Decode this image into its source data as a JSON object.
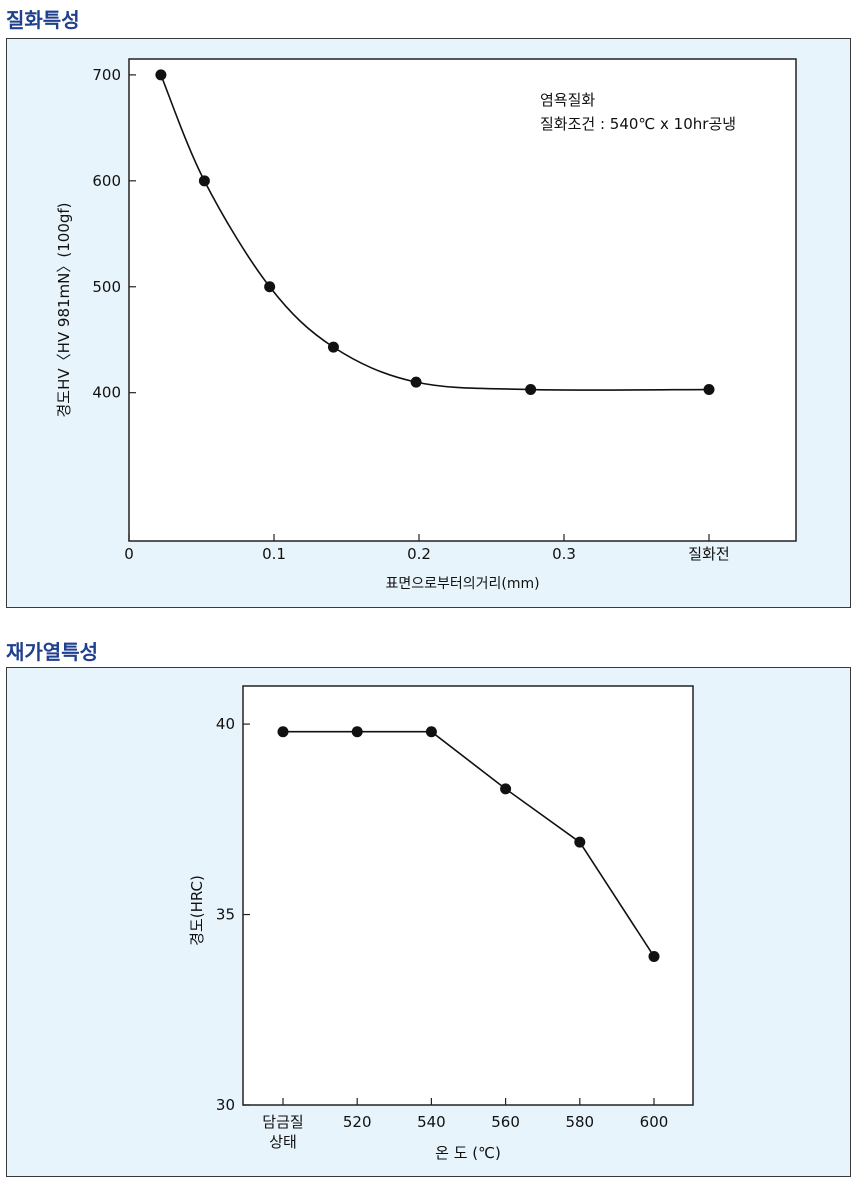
{
  "sections": [
    {
      "title": "질화특성"
    },
    {
      "title": "재가열특성"
    }
  ],
  "colors": {
    "title": "#1f3f8f",
    "panel_bg": "#e8f4fb",
    "plot_bg": "#ffffff",
    "line": "#111111"
  },
  "chart_data": [
    {
      "type": "line",
      "title": "",
      "xlabel": "표면으로부터의거리(mm)",
      "ylabel": "경도HV〈HV 981mN〉(100gf)",
      "x_ticks": [
        {
          "value": 0,
          "label": "0"
        },
        {
          "value": 0.1,
          "label": "0.1"
        },
        {
          "value": 0.2,
          "label": "0.2"
        },
        {
          "value": 0.3,
          "label": "0.3"
        },
        {
          "value": 0.4,
          "label": "질화전"
        }
      ],
      "y_ticks": [
        {
          "value": 400,
          "label": "400"
        },
        {
          "value": 500,
          "label": "500"
        },
        {
          "value": 600,
          "label": "600"
        },
        {
          "value": 700,
          "label": "700"
        }
      ],
      "xlim": [
        0,
        0.46
      ],
      "ylim": [
        260,
        715
      ],
      "smooth": true,
      "annotation": [
        "염욕질화",
        "질화조건 : 540℃ x 10hr공냉"
      ],
      "series": [
        {
          "x": [
            0.022,
            0.052,
            0.097,
            0.141,
            0.198,
            0.277,
            0.4
          ],
          "y": [
            700,
            600,
            500,
            443,
            410,
            403,
            403
          ]
        }
      ]
    },
    {
      "type": "line",
      "title": "",
      "xlabel": "온 도 (℃)",
      "ylabel": "경도(HRC)",
      "categories": [
        "담금질\n상태",
        "520",
        "540",
        "560",
        "580",
        "600"
      ],
      "y_ticks": [
        {
          "value": 30,
          "label": "30"
        },
        {
          "value": 35,
          "label": "35"
        },
        {
          "value": 40,
          "label": "40"
        }
      ],
      "ylim": [
        30,
        41
      ],
      "smooth": false,
      "series": [
        {
          "values": [
            39.8,
            39.8,
            39.8,
            38.3,
            36.9,
            33.9
          ]
        }
      ]
    }
  ]
}
